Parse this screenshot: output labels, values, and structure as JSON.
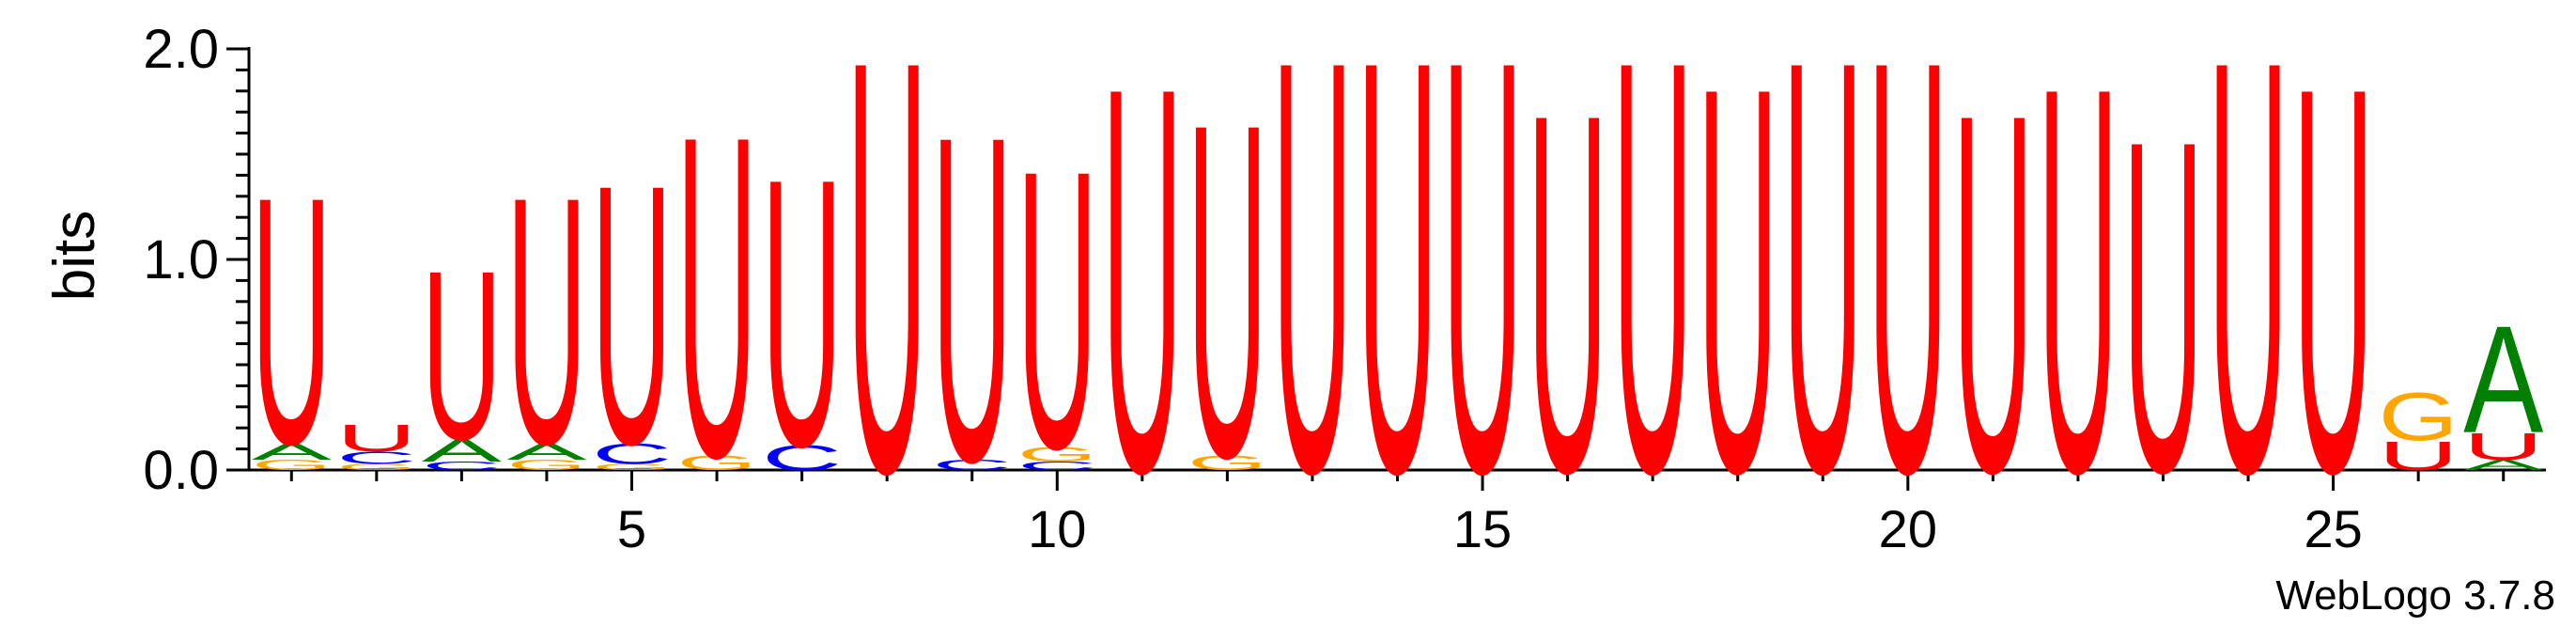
{
  "chart_data": {
    "type": "sequence-logo",
    "title": "",
    "ylabel": "bits",
    "xlabel": "",
    "ylim": [
      0,
      2.0
    ],
    "xlim": [
      0.5,
      27.5
    ],
    "y_ticks": [
      {
        "value": 0.0,
        "label": "0.0"
      },
      {
        "value": 1.0,
        "label": "1.0"
      },
      {
        "value": 2.0,
        "label": "2.0"
      }
    ],
    "x_ticks": [
      {
        "value": 5,
        "label": "5"
      },
      {
        "value": 10,
        "label": "10"
      },
      {
        "value": 15,
        "label": "15"
      },
      {
        "value": 20,
        "label": "20"
      },
      {
        "value": 25,
        "label": "25"
      }
    ],
    "colors": {
      "U": "#ff0000",
      "A": "#008000",
      "C": "#0000ff",
      "G": "#ffa500"
    },
    "positions": [
      {
        "pos": 1,
        "stack": [
          {
            "l": "G",
            "h": 0.05
          },
          {
            "l": "A",
            "h": 0.08
          },
          {
            "l": "U",
            "h": 1.2
          }
        ]
      },
      {
        "pos": 2,
        "stack": [
          {
            "l": "G",
            "h": 0.03
          },
          {
            "l": "C",
            "h": 0.06
          },
          {
            "l": "U",
            "h": 0.13
          }
        ]
      },
      {
        "pos": 3,
        "stack": [
          {
            "l": "C",
            "h": 0.04
          },
          {
            "l": "A",
            "h": 0.11
          },
          {
            "l": "U",
            "h": 0.82
          }
        ]
      },
      {
        "pos": 4,
        "stack": [
          {
            "l": "G",
            "h": 0.05
          },
          {
            "l": "A",
            "h": 0.08
          },
          {
            "l": "U",
            "h": 1.2
          }
        ]
      },
      {
        "pos": 5,
        "stack": [
          {
            "l": "G",
            "h": 0.03
          },
          {
            "l": "C",
            "h": 0.1
          },
          {
            "l": "U",
            "h": 1.26
          }
        ]
      },
      {
        "pos": 6,
        "stack": [
          {
            "l": "G",
            "h": 0.07
          },
          {
            "l": "U",
            "h": 1.56
          }
        ]
      },
      {
        "pos": 7,
        "stack": [
          {
            "l": "C",
            "h": 0.12
          },
          {
            "l": "U",
            "h": 1.3
          }
        ]
      },
      {
        "pos": 8,
        "stack": [
          {
            "l": "U",
            "h": 2.0
          }
        ]
      },
      {
        "pos": 9,
        "stack": [
          {
            "l": "C",
            "h": 0.05
          },
          {
            "l": "U",
            "h": 1.58
          }
        ]
      },
      {
        "pos": 10,
        "stack": [
          {
            "l": "C",
            "h": 0.04
          },
          {
            "l": "G",
            "h": 0.07
          },
          {
            "l": "U",
            "h": 1.35
          }
        ]
      },
      {
        "pos": 11,
        "stack": [
          {
            "l": "U",
            "h": 1.87
          }
        ]
      },
      {
        "pos": 12,
        "stack": [
          {
            "l": "G",
            "h": 0.07
          },
          {
            "l": "U",
            "h": 1.62
          }
        ]
      },
      {
        "pos": 13,
        "stack": [
          {
            "l": "U",
            "h": 2.0
          }
        ]
      },
      {
        "pos": 14,
        "stack": [
          {
            "l": "U",
            "h": 2.0
          }
        ]
      },
      {
        "pos": 15,
        "stack": [
          {
            "l": "U",
            "h": 2.0
          }
        ]
      },
      {
        "pos": 16,
        "stack": [
          {
            "l": "U",
            "h": 1.74
          }
        ]
      },
      {
        "pos": 17,
        "stack": [
          {
            "l": "U",
            "h": 2.0
          }
        ]
      },
      {
        "pos": 18,
        "stack": [
          {
            "l": "U",
            "h": 1.87
          }
        ]
      },
      {
        "pos": 19,
        "stack": [
          {
            "l": "U",
            "h": 2.0
          }
        ]
      },
      {
        "pos": 20,
        "stack": [
          {
            "l": "U",
            "h": 2.0
          }
        ]
      },
      {
        "pos": 21,
        "stack": [
          {
            "l": "U",
            "h": 1.74
          }
        ]
      },
      {
        "pos": 22,
        "stack": [
          {
            "l": "U",
            "h": 1.87
          }
        ]
      },
      {
        "pos": 23,
        "stack": [
          {
            "l": "U",
            "h": 1.61
          }
        ]
      },
      {
        "pos": 24,
        "stack": [
          {
            "l": "U",
            "h": 2.0
          }
        ]
      },
      {
        "pos": 25,
        "stack": [
          {
            "l": "U",
            "h": 1.87
          }
        ]
      },
      {
        "pos": 26,
        "stack": [
          {
            "l": "U",
            "h": 0.14
          },
          {
            "l": "G",
            "h": 0.23
          }
        ]
      },
      {
        "pos": 27,
        "stack": [
          {
            "l": "A",
            "h": 0.05
          },
          {
            "l": "U",
            "h": 0.13
          },
          {
            "l": "A",
            "h": 0.52
          }
        ]
      }
    ]
  },
  "credit": "WebLogo 3.7.8"
}
